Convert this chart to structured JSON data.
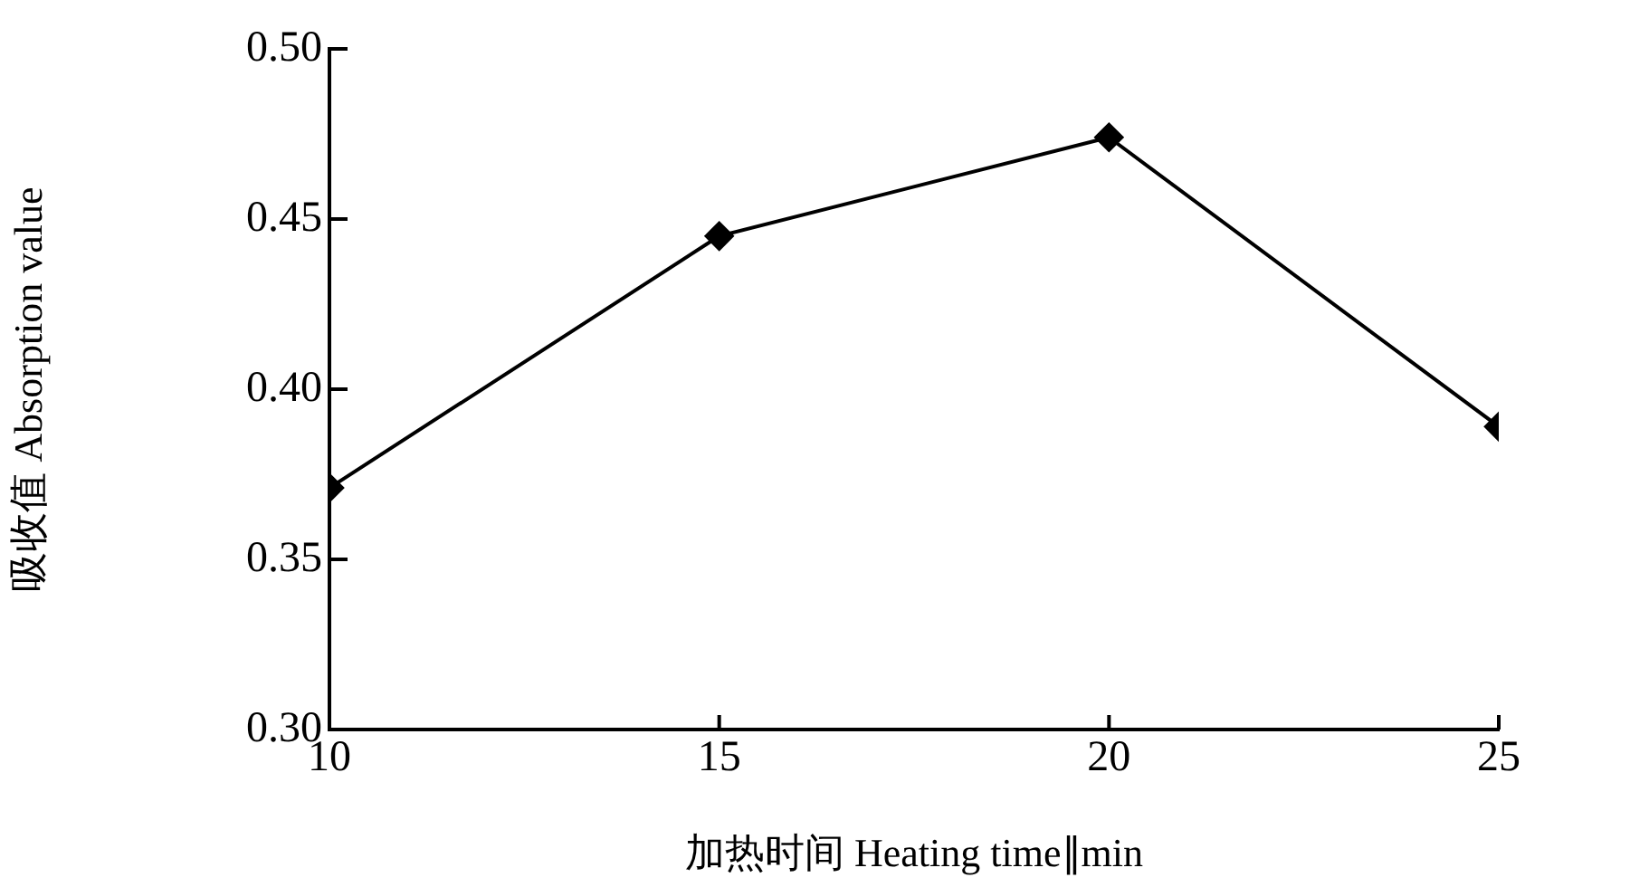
{
  "chart_data": {
    "type": "line",
    "xlabel": "加热时间 Heating time∥min",
    "ylabel": "吸收值 Absorption value",
    "x": [
      10,
      15,
      20,
      25
    ],
    "series": [
      {
        "color": "#000000",
        "values": [
          0.371,
          0.445,
          0.474,
          0.389
        ]
      }
    ],
    "xlim": [
      10,
      25
    ],
    "xticks": [
      10,
      15,
      20,
      25
    ],
    "ylim": [
      0.3,
      0.5
    ],
    "yticks": [
      {
        "value": 0.3,
        "label": "0.30"
      },
      {
        "value": 0.35,
        "label": "0.35"
      },
      {
        "value": 0.4,
        "label": "0.40"
      },
      {
        "value": 0.45,
        "label": "0.45"
      },
      {
        "value": 0.5,
        "label": "0.50"
      }
    ],
    "marker": "diamond",
    "line_style": "solid",
    "grid": false,
    "legend": false
  }
}
